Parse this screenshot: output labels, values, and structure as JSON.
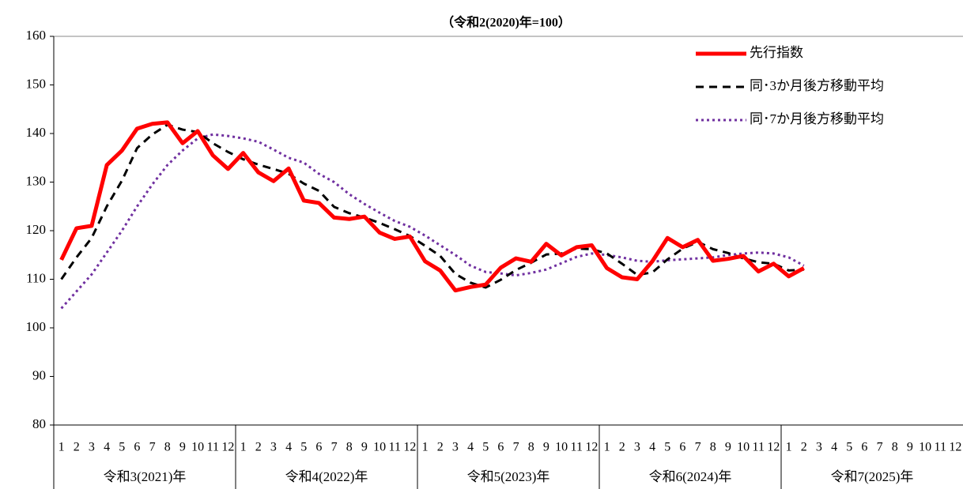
{
  "chart_data": {
    "type": "line",
    "title": "（令和2(2020)年=100）",
    "categories": [
      "1",
      "2",
      "3",
      "4",
      "5",
      "6",
      "7",
      "8",
      "9",
      "10",
      "11",
      "12",
      "1",
      "2",
      "3",
      "4",
      "5",
      "6",
      "7",
      "8",
      "9",
      "10",
      "11",
      "12",
      "1",
      "2",
      "3",
      "4",
      "5",
      "6",
      "7",
      "8",
      "9",
      "10",
      "11",
      "12",
      "1",
      "2",
      "3",
      "4",
      "5",
      "6",
      "7",
      "8",
      "9",
      "10",
      "11",
      "12",
      "1",
      "2",
      "3",
      "4",
      "5",
      "6",
      "7",
      "8",
      "9",
      "10",
      "11",
      "12"
    ],
    "year_labels": [
      "令和3(2021)年",
      "令和4(2022)年",
      "令和5(2023)年",
      "令和6(2024)年",
      "令和7(2025)年"
    ],
    "series": [
      {
        "name": "先行指数",
        "color": "#ff0000",
        "style": "solid",
        "values": [
          114,
          120.5,
          121,
          133.5,
          136.5,
          141,
          142,
          142.3,
          138,
          140.5,
          135.5,
          132.7,
          136,
          132,
          130.2,
          132.8,
          126.2,
          125.7,
          122.7,
          122.4,
          122.9,
          119.6,
          118.3,
          118.8,
          113.7,
          111.8,
          107.7,
          108.4,
          108.9,
          112.4,
          114.3,
          113.6,
          117.3,
          114.9,
          116.6,
          117,
          112.3,
          110.4,
          110,
          113.7,
          118.5,
          116.6,
          118.1,
          113.8,
          114.2,
          114.8,
          111.6,
          113.2,
          110.6,
          112.3,
          null,
          null,
          null,
          null,
          null,
          null,
          null,
          null,
          null,
          null
        ]
      },
      {
        "name": "同･3か月後方移動平均",
        "color": "#000000",
        "style": "dashed",
        "values": [
          110,
          114.5,
          118.5,
          125,
          130.3,
          137,
          139.8,
          141.8,
          140.8,
          140.3,
          138,
          136.2,
          134.7,
          133.6,
          132.7,
          131.7,
          129.7,
          128.2,
          124.9,
          123.6,
          122.7,
          121.6,
          120.3,
          118.9,
          116.9,
          114.8,
          111.1,
          109.3,
          108.3,
          109.9,
          111.9,
          113.4,
          115.1,
          115.3,
          116.3,
          116.2,
          115.3,
          113.2,
          110.9,
          111.4,
          114.1,
          116.3,
          117.7,
          116.2,
          115.4,
          114.3,
          113.5,
          113.2,
          111.8,
          112,
          null,
          null,
          null,
          null,
          null,
          null,
          null,
          null,
          null,
          null
        ]
      },
      {
        "name": "同･7か月後方移動平均",
        "color": "#7030a0",
        "style": "dotted",
        "values": [
          104,
          107.5,
          111,
          115.5,
          120,
          125,
          129.5,
          133.5,
          136.5,
          139,
          139.8,
          139.5,
          139,
          138.3,
          136.7,
          135,
          134,
          131.7,
          130,
          127.5,
          125.5,
          123.7,
          122,
          120.8,
          119,
          117,
          115,
          112.8,
          111.5,
          111.2,
          110.8,
          111.3,
          112,
          113.3,
          114.6,
          115.3,
          115,
          114.5,
          113.8,
          113.6,
          113.9,
          114.1,
          114.3,
          114.5,
          115,
          115.3,
          115.5,
          115.3,
          114.5,
          112.8,
          null,
          null,
          null,
          null,
          null,
          null,
          null,
          null,
          null,
          null
        ]
      }
    ],
    "ylim": [
      80,
      160
    ],
    "yticks": [
      80,
      90,
      100,
      110,
      120,
      130,
      140,
      150,
      160
    ],
    "grid": false,
    "legend": "top-right"
  }
}
